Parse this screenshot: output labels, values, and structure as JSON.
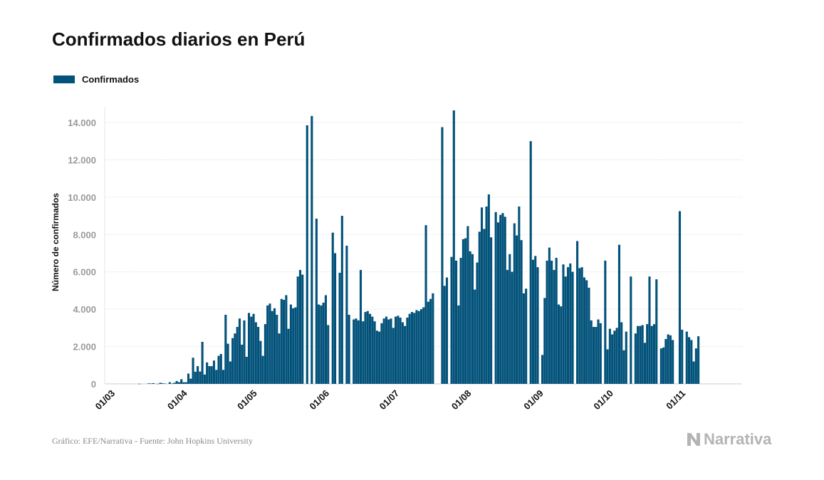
{
  "title": "Confirmados diarios en Perú",
  "source_note": "Gráfico: EFE/Narrativa - Fuente: John Hopkins University",
  "logo_text": "Narrativa",
  "logo_icon": "narrativa-n-icon",
  "colors": {
    "bar": "#03527a",
    "grid": "#e3e3e3",
    "tick_text": "#9a9a9a",
    "axis_label": "#111111"
  },
  "chart_data": {
    "type": "bar",
    "title": "Confirmados diarios en Perú",
    "xlabel": "",
    "ylabel": "Número de confirmados",
    "legend": [
      "Confirmados"
    ],
    "legend_position": "top-left",
    "grid": true,
    "ylim": [
      0,
      15000
    ],
    "yticks": [
      0,
      2000,
      4000,
      6000,
      8000,
      10000,
      12000,
      14000
    ],
    "ytick_labels": [
      "0",
      "2.000",
      "4.000",
      "6.000",
      "8.000",
      "10.000",
      "12.000",
      "14.000"
    ],
    "xtick_labels": [
      "01/03",
      "01/04",
      "01/05",
      "01/06",
      "01/07",
      "01/08",
      "01/09",
      "01/10",
      "01/11"
    ],
    "xtick_dates": [
      "2020-03-01",
      "2020-04-01",
      "2020-05-01",
      "2020-06-01",
      "2020-07-01",
      "2020-08-01",
      "2020-09-01",
      "2020-10-01",
      "2020-11-01"
    ],
    "x_start": "2020-03-01",
    "series": [
      {
        "name": "Confirmados",
        "values": [
          0,
          0,
          0,
          0,
          0,
          0,
          0,
          0,
          0,
          0,
          0,
          0,
          0,
          0,
          10,
          0,
          0,
          0,
          30,
          20,
          40,
          0,
          10,
          60,
          30,
          20,
          0,
          90,
          20,
          60,
          150,
          90,
          250,
          90,
          90,
          550,
          280,
          1400,
          650,
          950,
          660,
          2250,
          500,
          1150,
          950,
          950,
          1250,
          750,
          1500,
          1600,
          750,
          3700,
          2150,
          1200,
          2450,
          2700,
          3050,
          3500,
          2100,
          3400,
          1450,
          3800,
          3600,
          3750,
          3300,
          3050,
          2300,
          1500,
          3200,
          4200,
          4300,
          3900,
          4050,
          3700,
          2700,
          4550,
          4500,
          4750,
          2950,
          4250,
          4050,
          4100,
          5750,
          6100,
          5850,
          0,
          13850,
          0,
          14350,
          0,
          8850,
          4250,
          4200,
          4350,
          4750,
          3150,
          0,
          8100,
          7000,
          0,
          5950,
          9000,
          0,
          7400,
          3700,
          0,
          3450,
          3500,
          3400,
          6100,
          3350,
          3850,
          3900,
          3750,
          3600,
          3350,
          2850,
          2800,
          3250,
          3500,
          3600,
          3450,
          3500,
          3000,
          3600,
          3650,
          3550,
          3300,
          3100,
          3550,
          3750,
          3850,
          3800,
          3950,
          3900,
          4000,
          4100,
          8500,
          4400,
          4550,
          4850,
          0,
          0,
          0,
          13750,
          5250,
          5700,
          0,
          6800,
          14650,
          6600,
          4200,
          6750,
          7750,
          7800,
          8450,
          7100,
          6950,
          5050,
          6500,
          8150,
          9450,
          8300,
          9500,
          10150,
          7850,
          0,
          9200,
          8650,
          9050,
          9150,
          8950,
          6100,
          6950,
          6000,
          8600,
          7950,
          9500,
          7700,
          4850,
          5100,
          0,
          13000,
          6650,
          6850,
          6250,
          0,
          1550,
          4600,
          6600,
          7300,
          6600,
          6100,
          6750,
          4250,
          4150,
          6400,
          5750,
          6250,
          6450,
          6000,
          0,
          7650,
          6200,
          6250,
          5700,
          5550,
          5150,
          3400,
          3050,
          3050,
          3450,
          3250,
          0,
          6600,
          1850,
          2950,
          2650,
          2850,
          3000,
          7450,
          3300,
          1800,
          2800,
          0,
          5750,
          0,
          2700,
          3100,
          3100,
          3150,
          2200,
          3200,
          5750,
          3100,
          3200,
          5600,
          0,
          1900,
          1950,
          2400,
          2650,
          2600,
          2350,
          0,
          0,
          9250,
          2900,
          0,
          2800,
          2500,
          2350,
          1200,
          1900,
          2550
        ]
      }
    ]
  }
}
